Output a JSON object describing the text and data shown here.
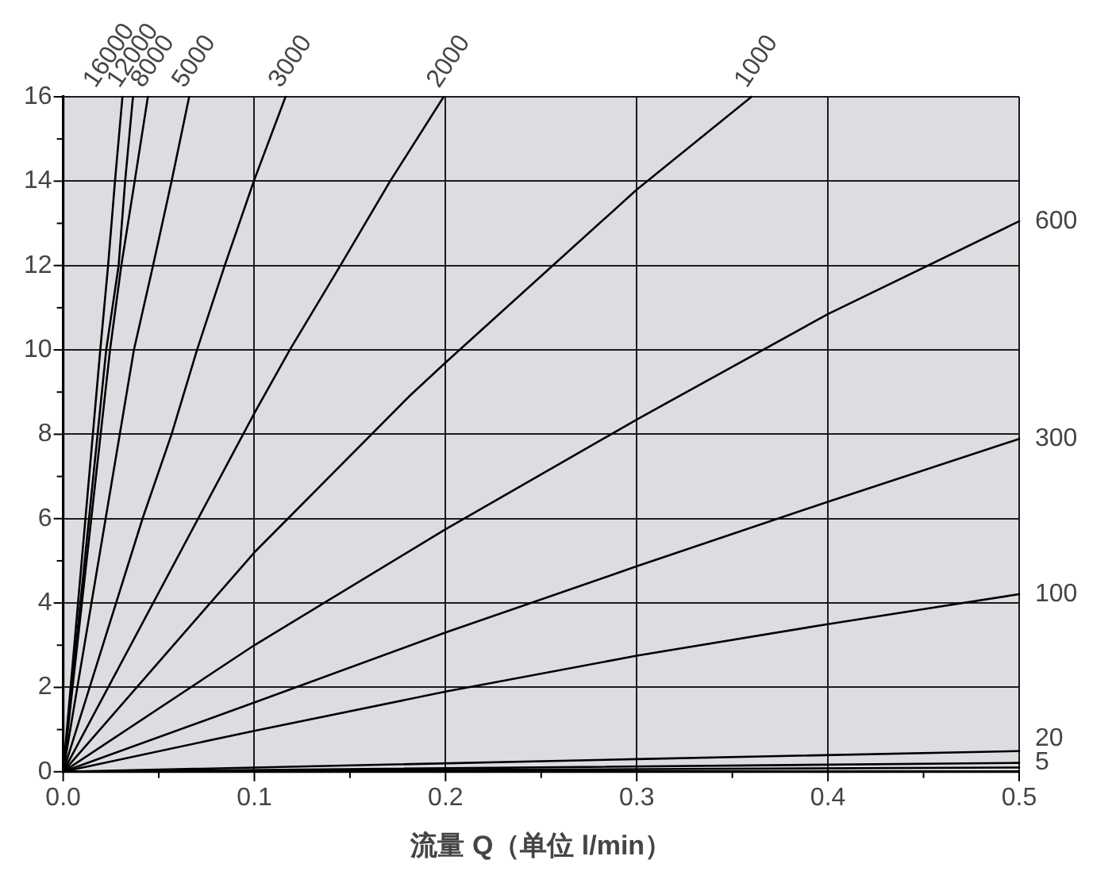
{
  "chart_data": {
    "type": "line",
    "xlabel": "流量 Q（单位 l/min）",
    "xlim": [
      0,
      0.5
    ],
    "xticks": [
      {
        "value": 0,
        "label": "0.0"
      },
      {
        "value": 0.05,
        "label": null
      },
      0.1,
      {
        "value": 0.15,
        "label": null
      },
      0.2,
      {
        "value": 0.25,
        "label": null
      },
      0.3,
      {
        "value": 0.35,
        "label": null
      },
      0.4,
      {
        "value": 0.45,
        "label": null
      },
      0.5
    ],
    "ylim": [
      0,
      16
    ],
    "yticks": [
      0,
      {
        "value": 1,
        "label": null
      },
      2,
      {
        "value": 3,
        "label": null
      },
      4,
      {
        "value": 5,
        "label": null
      },
      6,
      {
        "value": 7,
        "label": null
      },
      8,
      {
        "value": 9,
        "label": null
      },
      10,
      {
        "value": 11,
        "label": null
      },
      12,
      {
        "value": 13,
        "label": null
      },
      14,
      {
        "value": 15,
        "label": null
      },
      16
    ],
    "grid": true,
    "legend": false,
    "marker": "none",
    "line_style": "solid",
    "series": [
      {
        "name": "16000",
        "color": "#000000",
        "x": [
          0,
          0.0194,
          0.0235,
          0.0271,
          0.031
        ],
        "values": [
          0,
          10,
          12,
          14,
          16
        ]
      },
      {
        "name": "12000",
        "color": "#000000",
        "x": [
          0,
          0.0225,
          0.029,
          0.0324,
          0.0365
        ],
        "values": [
          0,
          10,
          12,
          14,
          16
        ]
      },
      {
        "name": "8000",
        "color": "#000000",
        "x": [
          0,
          0.0245,
          0.0304,
          0.0374,
          0.0443
        ],
        "values": [
          0,
          10,
          12,
          14,
          16
        ]
      },
      {
        "name": "5000",
        "color": "#000000",
        "x": [
          0,
          0.037,
          0.047,
          0.0567,
          0.0659
        ],
        "values": [
          0,
          10,
          12,
          14,
          16
        ]
      },
      {
        "name": "3000",
        "color": "#000000",
        "x": [
          0,
          0.0415,
          0.0567,
          0.07,
          0.0845,
          0.0997,
          0.1163
        ],
        "values": [
          0,
          6,
          8,
          10,
          12,
          14,
          16
        ]
      },
      {
        "name": "2000",
        "color": "#000000",
        "x": [
          0,
          0.1,
          0.1185,
          0.145,
          0.171,
          0.199
        ],
        "values": [
          0,
          8.5,
          10,
          12,
          14,
          16
        ]
      },
      {
        "name": "1000",
        "color": "#000000",
        "x": [
          0,
          0.1,
          0.181,
          0.2,
          0.3,
          0.36
        ],
        "values": [
          0,
          5.2,
          8.9,
          9.7,
          13.8,
          16
        ]
      },
      {
        "name": "600",
        "color": "#000000",
        "x": [
          0,
          0.1,
          0.2,
          0.3,
          0.4,
          0.5
        ],
        "values": [
          0,
          3.0,
          5.75,
          8.35,
          10.85,
          13.05
        ]
      },
      {
        "name": "300",
        "color": "#000000",
        "x": [
          0,
          0.1,
          0.2,
          0.3,
          0.4,
          0.5
        ],
        "values": [
          0,
          1.64,
          3.3,
          4.87,
          6.4,
          7.89
        ]
      },
      {
        "name": "100",
        "color": "#000000",
        "x": [
          0,
          0.1,
          0.2,
          0.3,
          0.4,
          0.5
        ],
        "values": [
          0,
          0.97,
          1.9,
          2.75,
          3.5,
          4.21
        ]
      },
      {
        "name": "20",
        "color": "#000000",
        "x": [
          0,
          0.3,
          0.5
        ],
        "values": [
          0,
          0.3,
          0.49
        ]
      },
      {
        "name": "5",
        "color": "#000000",
        "x": [
          0,
          0.5
        ],
        "values": [
          0,
          0.21
        ]
      },
      {
        "color": "#000000",
        "x": [
          0,
          0.5
        ],
        "values": [
          0,
          0.1
        ]
      }
    ]
  }
}
